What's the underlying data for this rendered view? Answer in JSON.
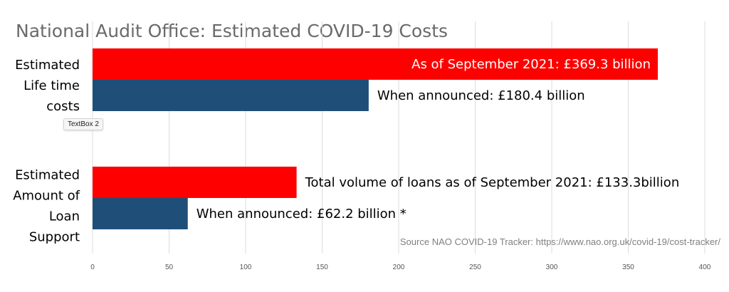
{
  "chart_data": {
    "type": "bar",
    "orientation": "horizontal",
    "title": "National Audit Office: Estimated COVID-19 Costs",
    "categories": [
      [
        "Estimated",
        "Life time",
        "costs"
      ],
      [
        "Estimated",
        "Amount of",
        "Loan",
        "Support"
      ]
    ],
    "series": [
      {
        "color": "#ff0000",
        "values": [
          369.3,
          133.3
        ],
        "labels": [
          "As of September 2021: £369.3 billion",
          "Total volume of loans as of September 2021: £133.3billion"
        ]
      },
      {
        "color": "#1f4e79",
        "values": [
          180.4,
          62.2
        ],
        "labels": [
          "When announced:  £180.4 billion",
          "When announced:  £62.2 billion *"
        ]
      }
    ],
    "xlim": [
      0,
      400
    ],
    "x_ticks": [
      0,
      50,
      100,
      150,
      200,
      250,
      300,
      350,
      400
    ],
    "grid": true,
    "source": "Source NAO COVID-19 Tracker: https://www.nao.org.uk/covid-19/cost-tracker/"
  },
  "tooltip": "TextBox 2"
}
